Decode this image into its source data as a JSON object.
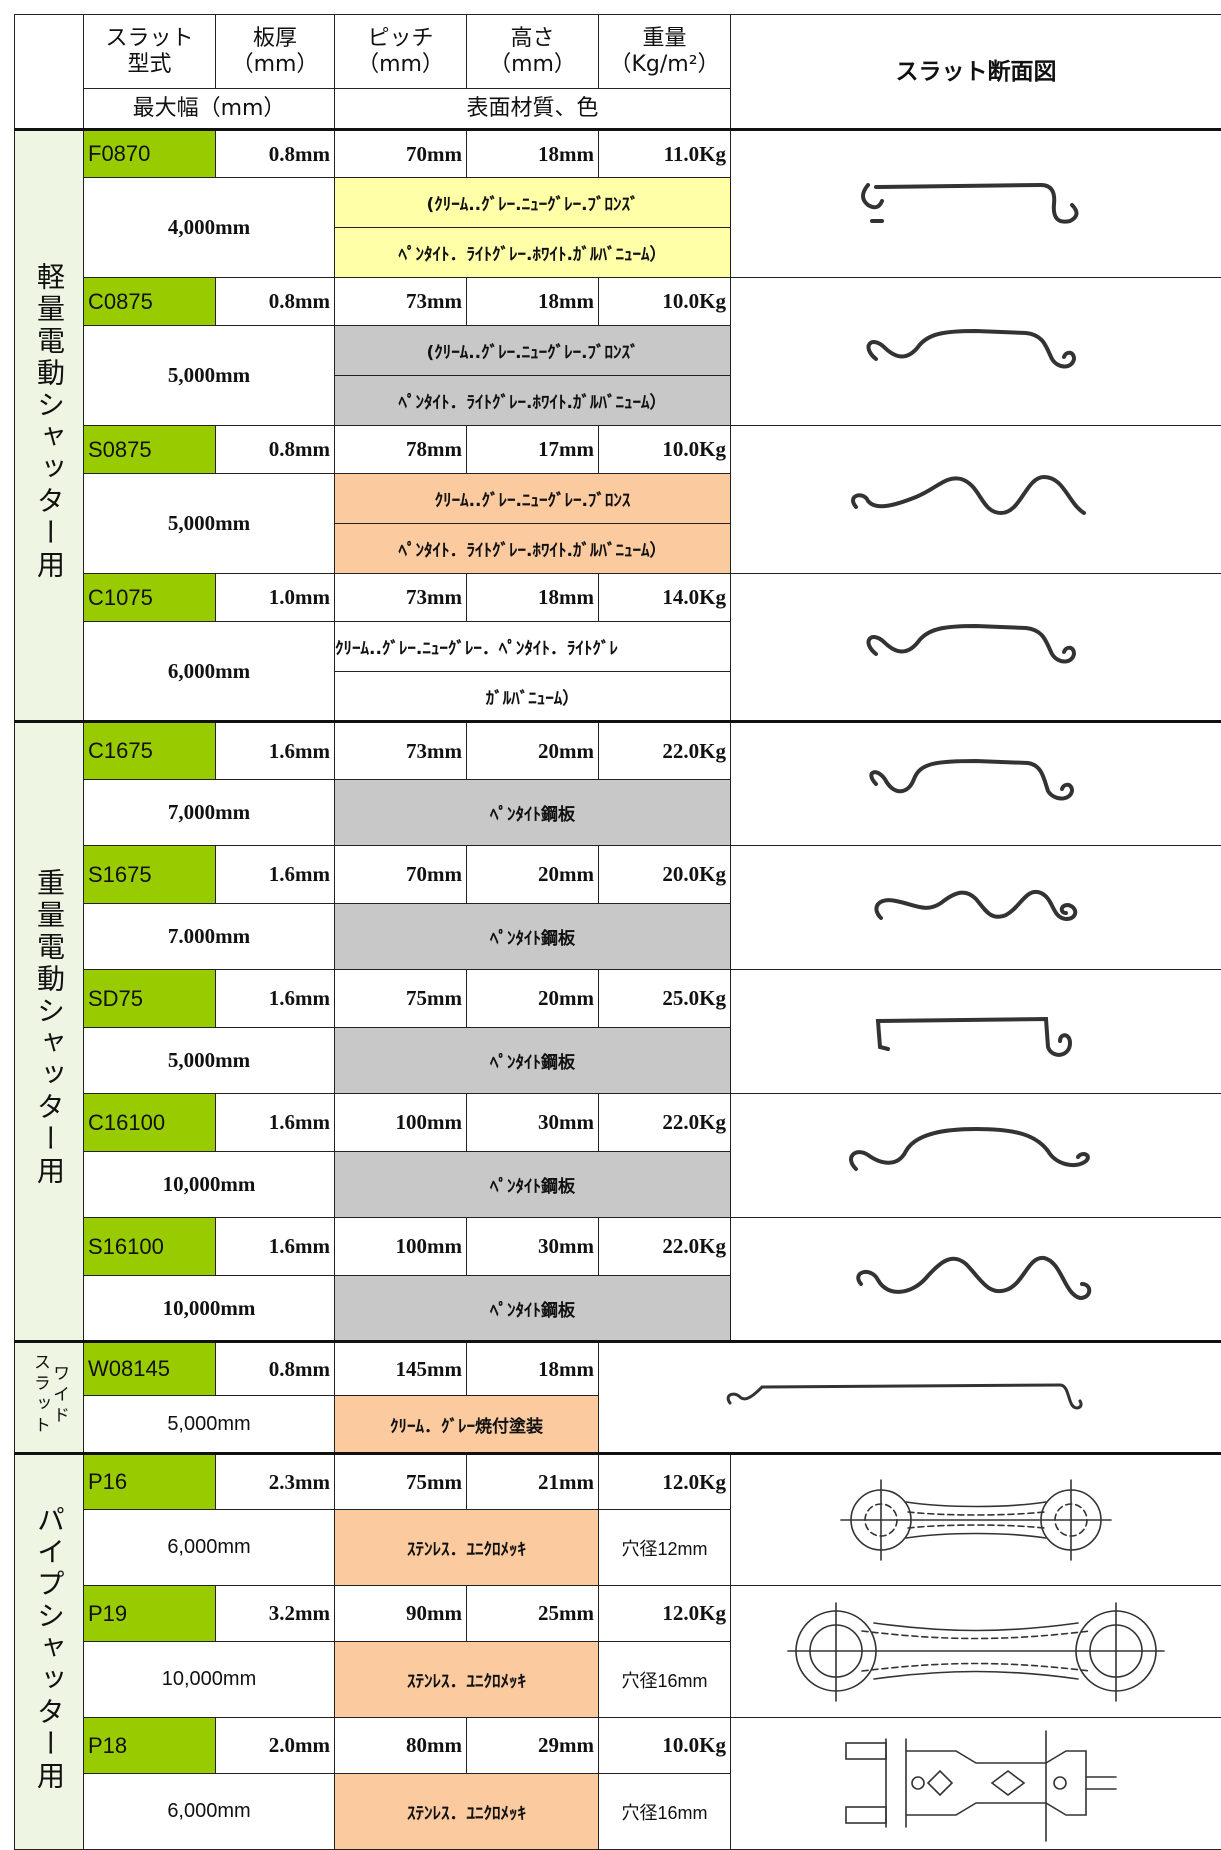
{
  "header": {
    "model": [
      "スラット",
      "型式"
    ],
    "thickness": [
      "板厚",
      "（mm）"
    ],
    "pitch": [
      "ピッチ",
      "（mm）"
    ],
    "height": [
      "高さ",
      "（mm）"
    ],
    "weight": [
      "重量",
      "（Kg/m²）"
    ],
    "max_width": "最大幅（mm）",
    "material": "表面材質、色",
    "diagram": "スラット断面図"
  },
  "groups": [
    {
      "label": "軽量電動シャッター用",
      "products": [
        {
          "model": "F0870",
          "thickness": "0.8mm",
          "pitch": "70mm",
          "height": "18mm",
          "weight": "11.0Kg",
          "max_width": "4,000mm",
          "material": [
            "(ｸﾘｰﾑ..ｸﾞﾚｰ.ﾆｭｰｸﾞﾚｰ.ﾌﾞﾛﾝｽﾞ",
            "ﾍﾟﾝﾀｲﾄ．ﾗｲﾄｸﾞﾚｰ.ﾎﾜｲﾄ.ｶﾞﾙﾊﾞﾆｭｰﾑ）"
          ]
        },
        {
          "model": "C0875",
          "thickness": "0.8mm",
          "pitch": "73mm",
          "height": "18mm",
          "weight": "10.0Kg",
          "max_width": "5,000mm",
          "material": [
            "(ｸﾘｰﾑ..ｸﾞﾚｰ.ﾆｭｰｸﾞﾚｰ.ﾌﾞﾛﾝｽﾞ",
            "ﾍﾟﾝﾀｲﾄ．ﾗｲﾄｸﾞﾚｰ.ﾎﾜｲﾄ.ｶﾞﾙﾊﾞﾆｭｰﾑ）"
          ]
        },
        {
          "model": "S0875",
          "thickness": "0.8mm",
          "pitch": "78mm",
          "height": "17mm",
          "weight": "10.0Kg",
          "max_width": "5,000mm",
          "material": [
            "ｸﾘｰﾑ..ｸﾞﾚｰ.ﾆｭｰｸﾞﾚｰ.ﾌﾞﾛﾝｽ",
            "ﾍﾟﾝﾀｲﾄ．ﾗｲﾄｸﾞﾚｰ.ﾎﾜｲﾄ.ｶﾞﾙﾊﾞﾆｭｰﾑ）"
          ]
        },
        {
          "model": "C1075",
          "thickness": "1.0mm",
          "pitch": "73mm",
          "height": "18mm",
          "weight": "14.0Kg",
          "max_width": "6,000mm",
          "material": [
            "ｸﾘｰﾑ..ｸﾞﾚｰ.ﾆｭｰｸﾞﾚｰ．ﾍﾟﾝﾀｲﾄ．ﾗｲﾄｸﾞﾚ",
            "ｶﾞﾙﾊﾞﾆｭｰﾑ）"
          ]
        }
      ]
    },
    {
      "label": "重量電動シャッター用",
      "products": [
        {
          "model": "C1675",
          "thickness": "1.6mm",
          "pitch": "73mm",
          "height": "20mm",
          "weight": "22.0Kg",
          "max_width": "7,000mm",
          "material": "ﾍﾟﾝﾀｲﾄ鋼板"
        },
        {
          "model": "S1675",
          "thickness": "1.6mm",
          "pitch": "70mm",
          "height": "20mm",
          "weight": "20.0Kg",
          "max_width": "7.000mm",
          "material": "ﾍﾟﾝﾀｲﾄ鋼板"
        },
        {
          "model": "SD75",
          "thickness": "1.6mm",
          "pitch": "75mm",
          "height": "20mm",
          "weight": "25.0Kg",
          "max_width": "5,000mm",
          "material": "ﾍﾟﾝﾀｲﾄ鋼板"
        },
        {
          "model": "C16100",
          "thickness": "1.6mm",
          "pitch": "100mm",
          "height": "30mm",
          "weight": "22.0Kg",
          "max_width": "10,000mm",
          "material": "ﾍﾟﾝﾀｲﾄ鋼板"
        },
        {
          "model": "S16100",
          "thickness": "1.6mm",
          "pitch": "100mm",
          "height": "30mm",
          "weight": "22.0Kg",
          "max_width": "10,000mm",
          "material": "ﾍﾟﾝﾀｲﾄ鋼板"
        }
      ]
    },
    {
      "label": [
        "ワイド",
        "スラット"
      ],
      "products": [
        {
          "model": "W08145",
          "thickness": "0.8mm",
          "pitch": "145mm",
          "height": "18mm",
          "max_width": "5,000mm",
          "material": "ｸﾘｰﾑ．ｸﾞﾚｰ焼付塗装"
        }
      ]
    },
    {
      "label": "パイプシャッター用",
      "products": [
        {
          "model": "P16",
          "thickness": "2.3mm",
          "pitch": "75mm",
          "height": "21mm",
          "weight": "12.0Kg",
          "max_width": "6,000mm",
          "material": "ｽﾃﾝﾚｽ．ﾕﾆｸﾛﾒｯｷ",
          "hole": "穴径12mm"
        },
        {
          "model": "P19",
          "thickness": "3.2mm",
          "pitch": "90mm",
          "height": "25mm",
          "weight": "12.0Kg",
          "max_width": "10,000mm",
          "material": "ｽﾃﾝﾚｽ．ﾕﾆｸﾛﾒｯｷ",
          "hole": "穴径16mm"
        },
        {
          "model": "P18",
          "thickness": "2.0mm",
          "pitch": "80mm",
          "height": "29mm",
          "weight": "10.0Kg",
          "max_width": "6,000mm",
          "material": "ｽﾃﾝﾚｽ．ﾕﾆｸﾛﾒｯｷ",
          "hole": "穴径16mm"
        }
      ]
    }
  ]
}
